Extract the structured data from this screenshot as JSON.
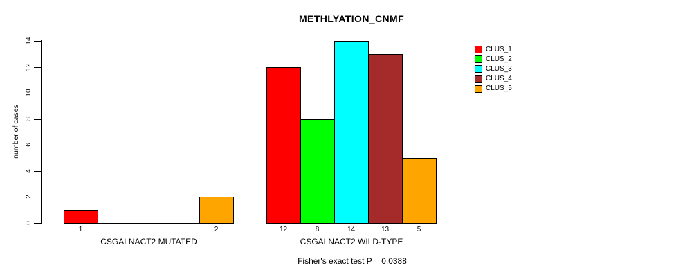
{
  "chart_data": {
    "type": "bar",
    "title": "METHLYATION_CNMF",
    "ylabel": "number of cases",
    "xlabel": "",
    "ylim": [
      0,
      14
    ],
    "yticks": [
      0,
      2,
      4,
      6,
      8,
      10,
      12,
      14
    ],
    "grid": false,
    "categories": [
      "CSGALNACT2 MUTATED",
      "CSGALNACT2 WILD-TYPE"
    ],
    "series": [
      {
        "name": "CLUS_1",
        "color": "#FF0000",
        "values": [
          1,
          12
        ]
      },
      {
        "name": "CLUS_2",
        "color": "#00FF00",
        "values": [
          0,
          8
        ]
      },
      {
        "name": "CLUS_3",
        "color": "#00FFFF",
        "values": [
          0,
          14
        ]
      },
      {
        "name": "CLUS_4",
        "color": "#A52A2A",
        "values": [
          0,
          13
        ]
      },
      {
        "name": "CLUS_5",
        "color": "#FFA500",
        "values": [
          2,
          5
        ]
      }
    ],
    "bar_value_labels": {
      "visible": true,
      "hide_zero": true
    },
    "legend": {
      "position": "top-right",
      "entries": [
        "CLUS_1",
        "CLUS_2",
        "CLUS_3",
        "CLUS_4",
        "CLUS_5"
      ]
    },
    "footnote": "Fisher's exact test P = 0.0388",
    "axis_color": "#000000",
    "bar_border_color": "#000000"
  }
}
